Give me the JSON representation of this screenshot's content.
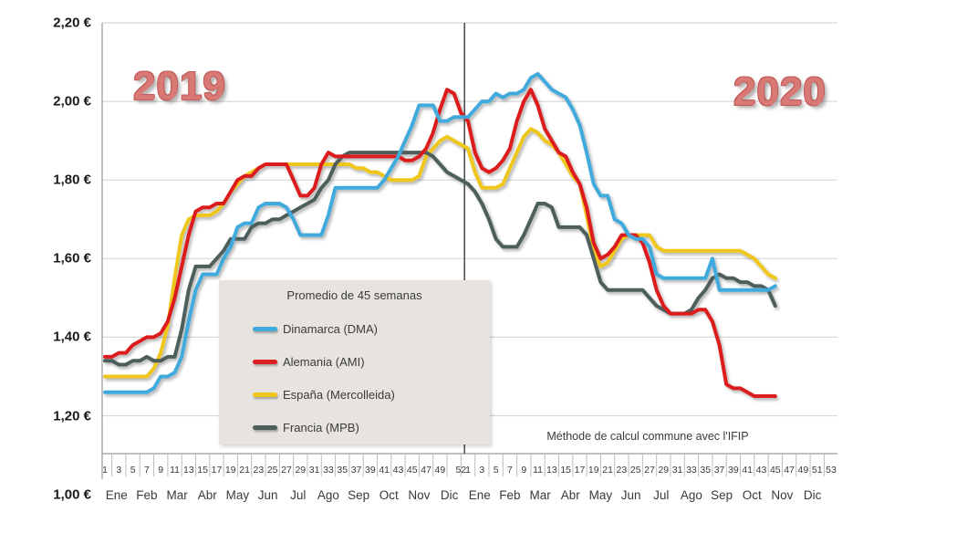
{
  "chart_data": {
    "type": "line",
    "title": "",
    "legend": {
      "title": "Promedio de 45 semanas"
    },
    "annotation": "Méthode de calcul commune avec l'IFIP",
    "y_axis": {
      "unit": "EUR/kg",
      "ylim": [
        1.0,
        2.2
      ],
      "ticks": [
        {
          "label": "2,20 €",
          "value": 2.2
        },
        {
          "label": "2,00 €",
          "value": 2.0
        },
        {
          "label": "1,80 €",
          "value": 1.8
        },
        {
          "label": "1,60 €",
          "value": 1.6
        },
        {
          "label": "1,40 €",
          "value": 1.4
        },
        {
          "label": "1,20 €",
          "value": 1.2
        },
        {
          "label": "1,00 €",
          "value": 1.0
        }
      ]
    },
    "x_axis": {
      "unit": "week",
      "months": [
        "Ene",
        "Feb",
        "Mar",
        "Abr",
        "May",
        "Jun",
        "Jul",
        "Ago",
        "Sep",
        "Oct",
        "Nov",
        "Dic"
      ],
      "years": [
        {
          "label": "2019",
          "weeks": 52,
          "week_tick_labels": [
            1,
            3,
            5,
            7,
            9,
            11,
            13,
            15,
            17,
            19,
            21,
            23,
            25,
            27,
            29,
            31,
            33,
            35,
            37,
            39,
            41,
            43,
            45,
            47,
            49,
            52
          ]
        },
        {
          "label": "2020",
          "weeks": 53,
          "week_tick_labels": [
            1,
            3,
            5,
            7,
            9,
            11,
            13,
            15,
            17,
            19,
            21,
            23,
            25,
            27,
            29,
            31,
            33,
            35,
            37,
            39,
            41,
            43,
            45,
            47,
            49,
            51,
            53
          ]
        }
      ]
    },
    "grid": true,
    "colors": {
      "gridline": "#d8d8d8",
      "axis_line": "#9a9a9a",
      "year_divider": "#3a3a3a",
      "year_label": "#D87976",
      "legend_bg": "#E7E4E0"
    },
    "series": [
      {
        "name": "Dinamarca (DMA)",
        "color": "#3FAADC",
        "values_2019": [
          1.26,
          1.26,
          1.26,
          1.26,
          1.26,
          1.26,
          1.26,
          1.27,
          1.3,
          1.3,
          1.31,
          1.35,
          1.44,
          1.52,
          1.56,
          1.56,
          1.56,
          1.6,
          1.63,
          1.68,
          1.69,
          1.69,
          1.73,
          1.74,
          1.74,
          1.74,
          1.73,
          1.7,
          1.66,
          1.66,
          1.66,
          1.66,
          1.71,
          1.78,
          1.78,
          1.78,
          1.78,
          1.78,
          1.78,
          1.78,
          1.8,
          1.83,
          1.86,
          1.9,
          1.94,
          1.99,
          1.99,
          1.99,
          1.95,
          1.95,
          1.96,
          1.96
        ],
        "values_2020": [
          1.96,
          1.98,
          2.0,
          2.0,
          2.02,
          2.01,
          2.02,
          2.02,
          2.03,
          2.06,
          2.07,
          2.05,
          2.03,
          2.02,
          2.01,
          1.98,
          1.94,
          1.87,
          1.79,
          1.76,
          1.76,
          1.7,
          1.69,
          1.66,
          1.65,
          1.65,
          1.63,
          1.56,
          1.55,
          1.55,
          1.55,
          1.55,
          1.55,
          1.55,
          1.55,
          1.6,
          1.52,
          1.52,
          1.52,
          1.52,
          1.52,
          1.52,
          1.52,
          1.52,
          1.53
        ]
      },
      {
        "name": "Alemania (AMI)",
        "color": "#DC1E1E",
        "values_2019": [
          1.35,
          1.35,
          1.36,
          1.36,
          1.38,
          1.39,
          1.4,
          1.4,
          1.41,
          1.44,
          1.5,
          1.58,
          1.66,
          1.72,
          1.73,
          1.73,
          1.74,
          1.74,
          1.77,
          1.8,
          1.81,
          1.81,
          1.83,
          1.84,
          1.84,
          1.84,
          1.84,
          1.8,
          1.76,
          1.76,
          1.78,
          1.84,
          1.87,
          1.86,
          1.86,
          1.86,
          1.86,
          1.86,
          1.86,
          1.86,
          1.86,
          1.86,
          1.86,
          1.85,
          1.85,
          1.86,
          1.88,
          1.92,
          1.98,
          2.03,
          2.02,
          1.97
        ],
        "values_2020": [
          1.95,
          1.87,
          1.83,
          1.82,
          1.83,
          1.85,
          1.88,
          1.95,
          2.0,
          2.03,
          1.99,
          1.93,
          1.9,
          1.87,
          1.86,
          1.82,
          1.79,
          1.73,
          1.64,
          1.6,
          1.61,
          1.63,
          1.66,
          1.66,
          1.66,
          1.64,
          1.59,
          1.52,
          1.48,
          1.46,
          1.46,
          1.46,
          1.46,
          1.47,
          1.47,
          1.44,
          1.38,
          1.28,
          1.27,
          1.27,
          1.26,
          1.25,
          1.25,
          1.25,
          1.25
        ]
      },
      {
        "name": "España (Mercolleida)",
        "color": "#EFC71D",
        "values_2019": [
          1.3,
          1.3,
          1.3,
          1.3,
          1.3,
          1.3,
          1.3,
          1.32,
          1.36,
          1.43,
          1.55,
          1.66,
          1.7,
          1.71,
          1.71,
          1.71,
          1.72,
          1.74,
          1.77,
          1.79,
          1.81,
          1.82,
          1.83,
          1.84,
          1.84,
          1.84,
          1.84,
          1.84,
          1.84,
          1.84,
          1.84,
          1.84,
          1.84,
          1.84,
          1.84,
          1.84,
          1.83,
          1.83,
          1.82,
          1.82,
          1.81,
          1.8,
          1.8,
          1.8,
          1.8,
          1.81,
          1.86,
          1.88,
          1.9,
          1.91,
          1.9,
          1.89
        ],
        "values_2020": [
          1.88,
          1.82,
          1.78,
          1.78,
          1.78,
          1.79,
          1.83,
          1.87,
          1.91,
          1.93,
          1.92,
          1.9,
          1.89,
          1.87,
          1.84,
          1.81,
          1.79,
          1.71,
          1.62,
          1.58,
          1.59,
          1.62,
          1.65,
          1.66,
          1.66,
          1.66,
          1.66,
          1.63,
          1.62,
          1.62,
          1.62,
          1.62,
          1.62,
          1.62,
          1.62,
          1.62,
          1.62,
          1.62,
          1.62,
          1.62,
          1.61,
          1.6,
          1.58,
          1.56,
          1.55
        ]
      },
      {
        "name": "Francia (MPB)",
        "color": "#4D5F5C",
        "values_2019": [
          1.34,
          1.34,
          1.33,
          1.33,
          1.34,
          1.34,
          1.35,
          1.34,
          1.34,
          1.35,
          1.35,
          1.42,
          1.52,
          1.58,
          1.58,
          1.58,
          1.6,
          1.62,
          1.65,
          1.65,
          1.65,
          1.68,
          1.69,
          1.69,
          1.7,
          1.7,
          1.71,
          1.72,
          1.73,
          1.74,
          1.75,
          1.78,
          1.8,
          1.84,
          1.86,
          1.87,
          1.87,
          1.87,
          1.87,
          1.87,
          1.87,
          1.87,
          1.87,
          1.87,
          1.87,
          1.87,
          1.87,
          1.86,
          1.84,
          1.82,
          1.81,
          1.8
        ],
        "values_2020": [
          1.79,
          1.77,
          1.74,
          1.7,
          1.65,
          1.63,
          1.63,
          1.63,
          1.66,
          1.7,
          1.74,
          1.74,
          1.73,
          1.68,
          1.68,
          1.68,
          1.68,
          1.66,
          1.6,
          1.54,
          1.52,
          1.52,
          1.52,
          1.52,
          1.52,
          1.52,
          1.5,
          1.48,
          1.47,
          1.46,
          1.46,
          1.46,
          1.47,
          1.5,
          1.52,
          1.55,
          1.56,
          1.55,
          1.55,
          1.54,
          1.54,
          1.53,
          1.53,
          1.52,
          1.48
        ]
      }
    ]
  }
}
